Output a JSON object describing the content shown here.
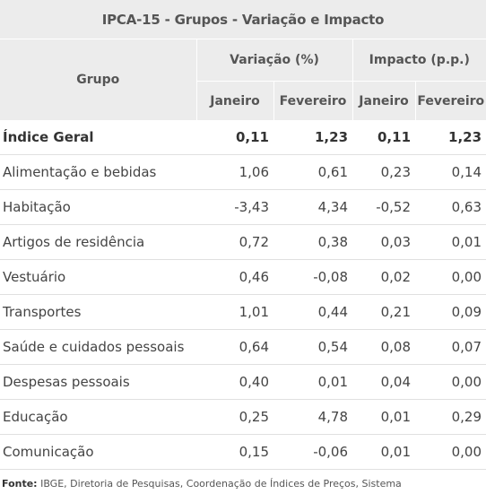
{
  "title": "IPCA-15 - Grupos - Variação e Impacto",
  "headers": {
    "grupo": "Grupo",
    "variacao": "Variação (%)",
    "impacto": "Impacto (p.p.)",
    "janeiro": "Janeiro",
    "fevereiro": "Fevereiro"
  },
  "rows": [
    {
      "grupo": "Índice Geral",
      "var_jan": "0,11",
      "var_fev": "1,23",
      "imp_jan": "0,11",
      "imp_fev": "1,23"
    },
    {
      "grupo": "Alimentação e bebidas",
      "var_jan": "1,06",
      "var_fev": "0,61",
      "imp_jan": "0,23",
      "imp_fev": "0,14"
    },
    {
      "grupo": "Habitação",
      "var_jan": "-3,43",
      "var_fev": "4,34",
      "imp_jan": "-0,52",
      "imp_fev": "0,63"
    },
    {
      "grupo": "Artigos de residência",
      "var_jan": "0,72",
      "var_fev": "0,38",
      "imp_jan": "0,03",
      "imp_fev": "0,01"
    },
    {
      "grupo": "Vestuário",
      "var_jan": "0,46",
      "var_fev": "-0,08",
      "imp_jan": "0,02",
      "imp_fev": "0,00"
    },
    {
      "grupo": "Transportes",
      "var_jan": "1,01",
      "var_fev": "0,44",
      "imp_jan": "0,21",
      "imp_fev": "0,09"
    },
    {
      "grupo": "Saúde e cuidados pessoais",
      "var_jan": "0,64",
      "var_fev": "0,54",
      "imp_jan": "0,08",
      "imp_fev": "0,07"
    },
    {
      "grupo": "Despesas pessoais",
      "var_jan": "0,40",
      "var_fev": "0,01",
      "imp_jan": "0,04",
      "imp_fev": "0,00"
    },
    {
      "grupo": "Educação",
      "var_jan": "0,25",
      "var_fev": "4,78",
      "imp_jan": "0,01",
      "imp_fev": "0,29"
    },
    {
      "grupo": "Comunicação",
      "var_jan": "0,15",
      "var_fev": "-0,06",
      "imp_jan": "0,01",
      "imp_fev": "0,00"
    }
  ],
  "footer": {
    "label": "Fonte:",
    "text": " IBGE, Diretoria de Pesquisas, Coordenação de Índices de Preços, Sistema"
  }
}
